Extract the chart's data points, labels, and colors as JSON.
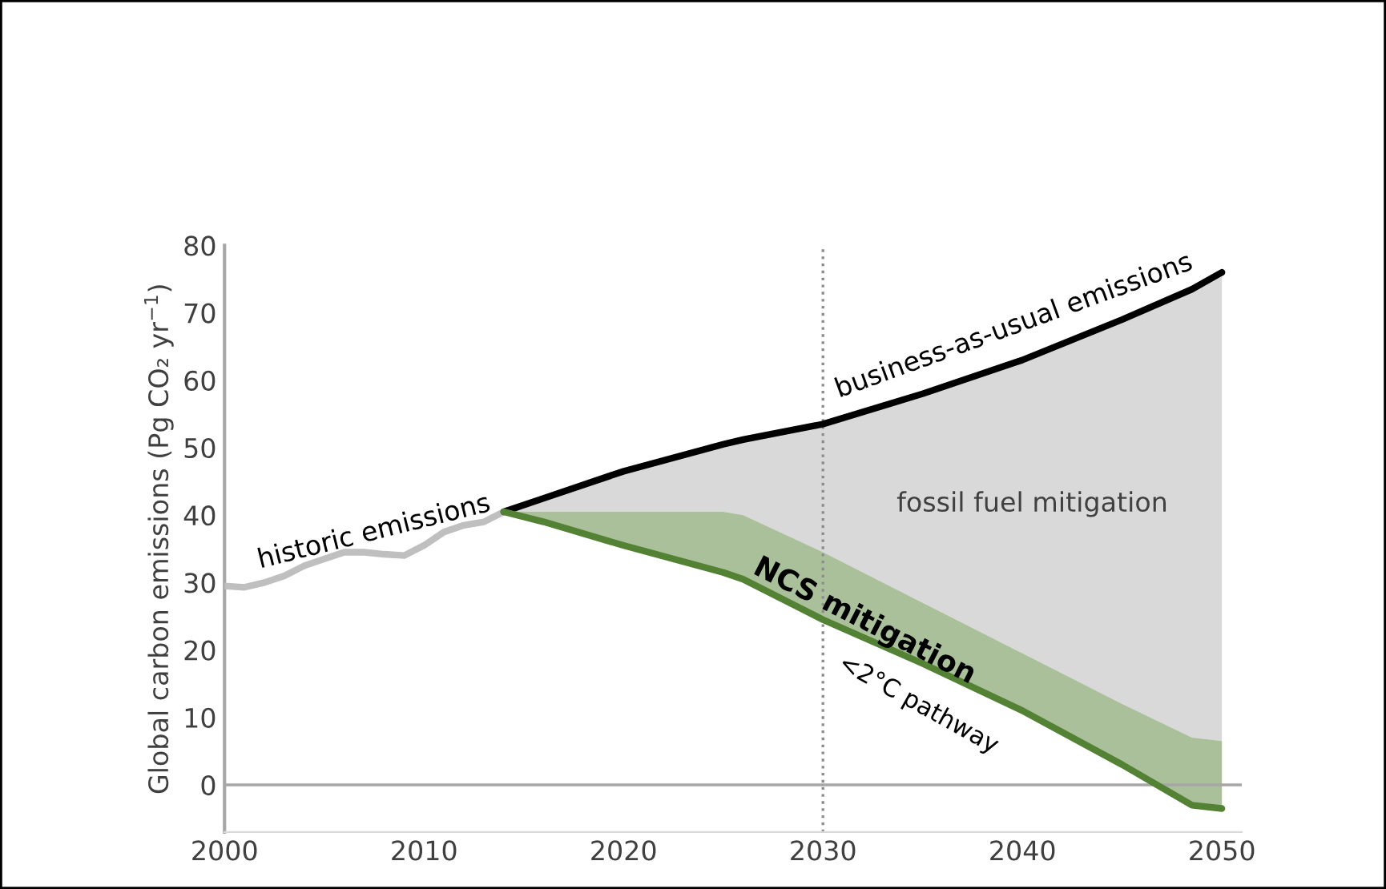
{
  "chart_data": {
    "type": "line",
    "ylabel": "Global carbon emissions (Pg CO₂ yr$^{−1}$)",
    "xlim": [
      2000,
      2051
    ],
    "xticks": [
      2000,
      2010,
      2020,
      2030,
      2040,
      2050
    ],
    "ylim": [
      -7,
      80
    ],
    "yticks": [
      0,
      10,
      20,
      30,
      40,
      50,
      60,
      70,
      80
    ],
    "grid": false,
    "legend": false,
    "series": [
      {
        "color": "#bfbfbf",
        "x": [
          2000,
          2001,
          2002,
          2003,
          2004,
          2005,
          2006,
          2007,
          2008,
          2009,
          2010,
          2011,
          2012,
          2013,
          2014
        ],
        "values": [
          29.5,
          29.3,
          30,
          31,
          32.5,
          33.5,
          34.5,
          34.5,
          34.2,
          34,
          35.5,
          37.5,
          38.5,
          39,
          40.5
        ]
      },
      {
        "color": "#000000",
        "x": [
          2014,
          2016,
          2020,
          2025,
          2026,
          2030,
          2035,
          2040,
          2045,
          2048.5,
          2050
        ],
        "values": [
          40.5,
          42.5,
          46.5,
          50.5,
          51.2,
          53.5,
          58,
          63,
          69,
          73.5,
          76
        ],
        "lower": [
          40.5,
          40.5,
          40.5,
          40.5,
          40,
          34.5,
          27,
          19.5,
          12,
          7,
          6.5
        ],
        "upper": [
          40.5,
          42.5,
          46.5,
          50.5,
          51.2,
          53.5,
          58,
          63,
          69,
          73.5,
          76
        ]
      },
      {
        "color": "#548235",
        "x": [
          2014,
          2016,
          2020,
          2025,
          2026,
          2030,
          2035,
          2040,
          2045,
          2048.5,
          2050
        ],
        "values": [
          40.5,
          39,
          35.5,
          31.5,
          30.5,
          24.5,
          18,
          11,
          3,
          -3,
          -3.5
        ],
        "lower": [
          40.5,
          39,
          35.5,
          31.5,
          30.5,
          24.5,
          18,
          11,
          3,
          -3,
          -3.5
        ],
        "upper": [
          40.5,
          40.5,
          40.5,
          40.5,
          40,
          34.5,
          27,
          19.5,
          12,
          7,
          6.5
        ]
      }
    ],
    "ref_lines": [
      {
        "axis": "y",
        "value": 0,
        "color": "#a6a6a6",
        "line_style": "solid"
      },
      {
        "axis": "x",
        "value": 2030,
        "color": "#8c8c8c",
        "line_style": "dotted"
      }
    ],
    "annotations": [
      "historic emissions",
      "business-as-usual emissions",
      "fossil fuel mitigation",
      "NCS mitigation",
      "<2°C pathway"
    ]
  }
}
